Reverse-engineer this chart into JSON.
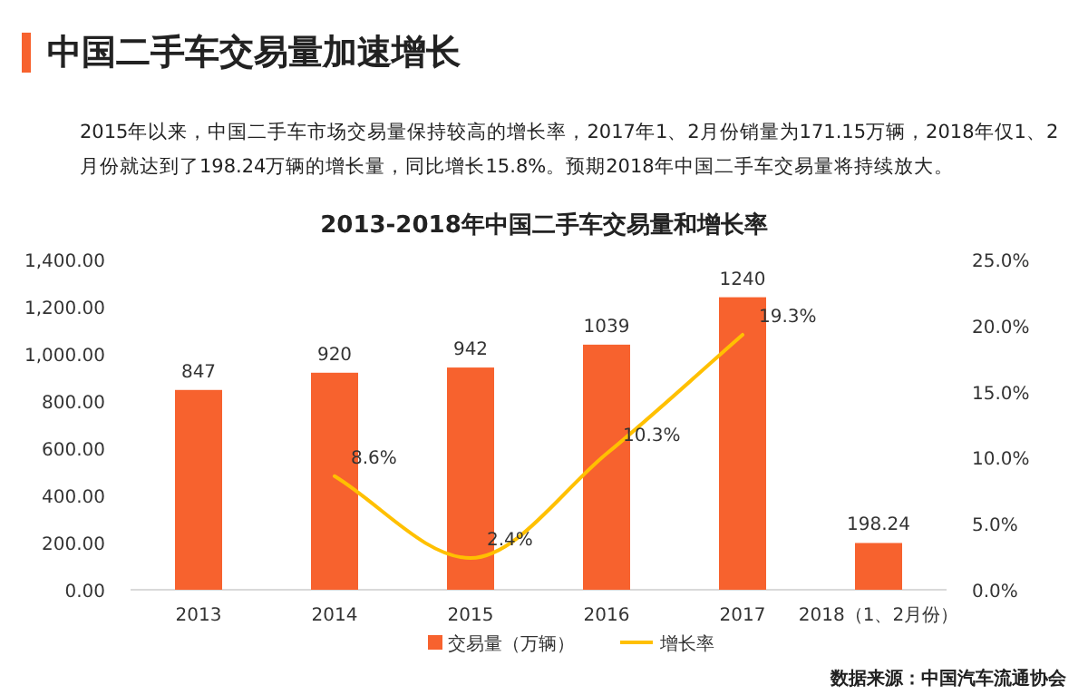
{
  "chart_data": {
    "type": "bar",
    "title": "中国二手车交易量加速增长",
    "subtitle": "2015年以来，中国二手车市场交易量保持较高的增长率，2017年1、2月份销量为171.15万辆，2018年仅1、2月份就达到了198.24万辆的增长量，同比增长15.8%。预期2018年中国二手车交易量将持续放大。",
    "annotations": [
      "2013-2018年中国二手车交易量和增长率",
      "数据来源：中国汽车流通协会"
    ],
    "categories": [
      "2013",
      "2014",
      "2015",
      "2016",
      "2017",
      "2018（1、2月份）"
    ],
    "series": [
      {
        "name": "交易量（万辆）",
        "color": "#f7622e",
        "values": [
          847,
          920,
          942,
          1039,
          1240,
          198.24
        ],
        "value_labels": [
          "847",
          "920",
          "942",
          "1039",
          "1240",
          "198.24"
        ]
      },
      {
        "name": "增长率",
        "type": "line",
        "axis": "y2",
        "color": "#ffc000",
        "values": [
          null,
          8.6,
          2.4,
          10.3,
          19.3,
          null
        ],
        "value_labels": [
          null,
          "8.6%",
          "2.4%",
          "10.3%",
          "19.3%",
          null
        ]
      }
    ],
    "ylim": [
      0,
      1400
    ],
    "yticks": [
      {
        "value": 0,
        "label": "0.00"
      },
      {
        "value": 200,
        "label": "200.00"
      },
      {
        "value": 400,
        "label": "400.00"
      },
      {
        "value": 600,
        "label": "600.00"
      },
      {
        "value": 800,
        "label": "800.00"
      },
      {
        "value": 1000,
        "label": "1,000.00"
      },
      {
        "value": 1200,
        "label": "1,200.00"
      },
      {
        "value": 1400,
        "label": "1,400.00"
      }
    ],
    "y2lim": [
      0,
      25
    ],
    "y2ticks": [
      {
        "value": 0,
        "label": "0.0%"
      },
      {
        "value": 5,
        "label": "5.0%"
      },
      {
        "value": 10,
        "label": "10.0%"
      },
      {
        "value": 15,
        "label": "15.0%"
      },
      {
        "value": 20,
        "label": "20.0%"
      },
      {
        "value": 25,
        "label": "25.0%"
      }
    ],
    "legend": "bottom",
    "grid": false,
    "marker": "none",
    "line_style": "solid"
  }
}
